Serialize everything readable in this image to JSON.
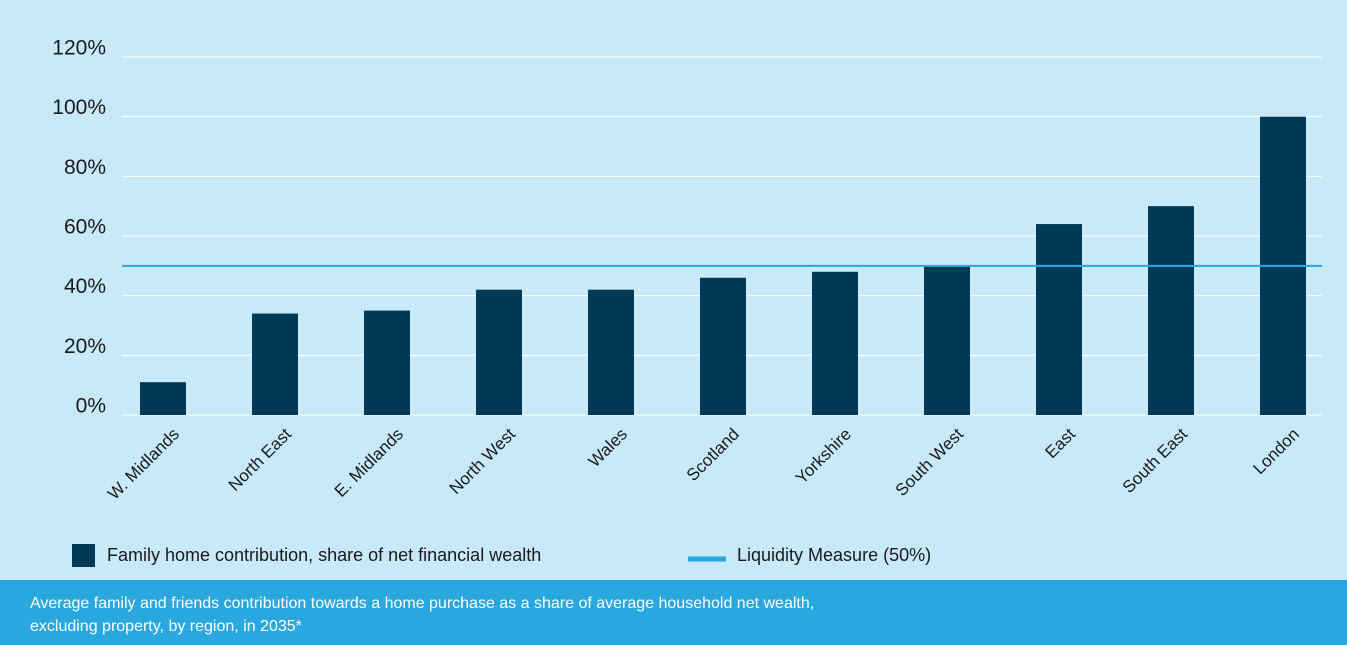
{
  "chart_data": {
    "type": "bar",
    "categories": [
      "W. Midlands",
      "North East",
      "E. Midlands",
      "North West",
      "Wales",
      "Scotland",
      "Yorkshire",
      "South West",
      "East",
      "South East",
      "London"
    ],
    "series": [
      {
        "name": "Family home contribution, share of net financial wealth",
        "color": "#003a56",
        "values": [
          11,
          34,
          35,
          42,
          42,
          46,
          48,
          50,
          64,
          70,
          100
        ]
      }
    ],
    "reference_line": {
      "name": "Liquidity Measure (50%)",
      "value": 50,
      "color": "#29a8e0"
    },
    "ylim": [
      0,
      120
    ],
    "yticks": [
      {
        "value": 0,
        "label": "0%"
      },
      {
        "value": 20,
        "label": "20%"
      },
      {
        "value": 40,
        "label": "40%"
      },
      {
        "value": 60,
        "label": "60%"
      },
      {
        "value": 80,
        "label": "80%"
      },
      {
        "value": 100,
        "label": "100%"
      },
      {
        "value": 120,
        "label": "120%"
      }
    ],
    "grid": true,
    "caption": [
      "Average family and friends contribution towards a home purchase as a share of average household net wealth,",
      "excluding property, by region, in 2035*"
    ]
  }
}
